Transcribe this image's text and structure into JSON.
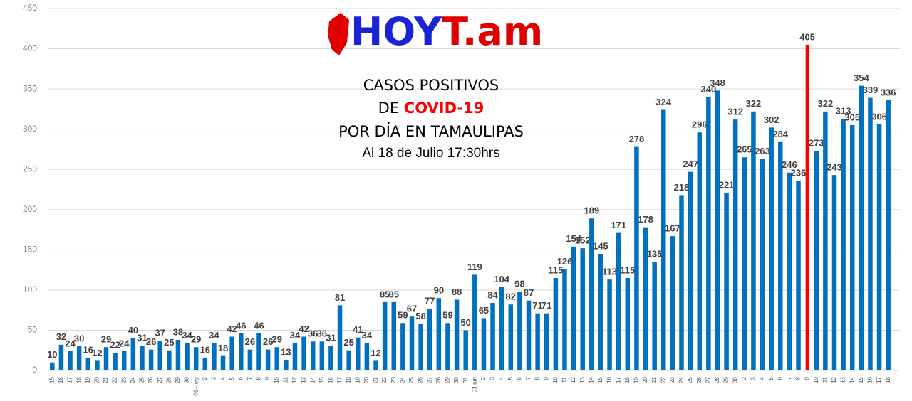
{
  "chart_data": {
    "type": "bar",
    "logo": {
      "part1": "HOY",
      "part2": "T.am"
    },
    "title_lines": [
      "CASOS POSITIVOS",
      "DE ",
      "COVID-19",
      "POR DÍA EN TAMAULIPAS"
    ],
    "subtitle": "Al 18 de Julio 17:30hrs",
    "categories": [
      "15",
      "16",
      "17",
      "18",
      "19",
      "20",
      "21",
      "22",
      "23",
      "24",
      "25",
      "26",
      "27",
      "28",
      "29",
      "30",
      "01-may",
      "2",
      "3",
      "4",
      "5",
      "6",
      "7",
      "8",
      "9",
      "10",
      "11",
      "12",
      "13",
      "14",
      "15",
      "16",
      "17",
      "18",
      "19",
      "20",
      "21",
      "22",
      "23",
      "24",
      "25",
      "26",
      "27",
      "28",
      "29",
      "30",
      "31",
      "01-jun",
      "2",
      "3",
      "4",
      "5",
      "6",
      "7",
      "8",
      "9",
      "10",
      "11",
      "12",
      "13",
      "14",
      "15",
      "16",
      "17",
      "18",
      "19",
      "20",
      "21",
      "22",
      "23",
      "24",
      "25",
      "26",
      "27",
      "28",
      "29",
      "30",
      "2",
      "3",
      "4",
      "5",
      "6",
      "7",
      "8",
      "9",
      "10",
      "11",
      "12",
      "13",
      "14",
      "15",
      "16",
      "17",
      "18"
    ],
    "values": [
      10,
      32,
      24,
      30,
      16,
      12,
      29,
      22,
      24,
      40,
      31,
      26,
      37,
      25,
      38,
      34,
      29,
      16,
      34,
      18,
      42,
      46,
      26,
      46,
      26,
      29,
      13,
      34,
      42,
      36,
      36,
      31,
      81,
      25,
      41,
      34,
      12,
      85,
      85,
      59,
      67,
      58,
      77,
      90,
      59,
      88,
      50,
      119,
      65,
      84,
      104,
      82,
      98,
      87,
      71,
      71,
      115,
      126,
      154,
      152,
      189,
      145,
      113,
      171,
      115,
      278,
      178,
      135,
      324,
      167,
      218,
      247,
      296,
      340,
      348,
      221,
      312,
      265,
      322,
      263,
      302,
      284,
      246,
      236,
      405,
      273,
      322,
      243,
      313,
      305,
      354,
      339,
      306,
      336
    ],
    "colors": [
      "#0070c0",
      "#0070c0",
      "#0070c0",
      "#0070c0",
      "#0070c0",
      "#0070c0",
      "#0070c0",
      "#0070c0",
      "#0070c0",
      "#0070c0",
      "#0070c0",
      "#0070c0",
      "#0070c0",
      "#0070c0",
      "#0070c0",
      "#0070c0",
      "#0070c0",
      "#0070c0",
      "#0070c0",
      "#0070c0",
      "#0070c0",
      "#0070c0",
      "#0070c0",
      "#0070c0",
      "#0070c0",
      "#0070c0",
      "#0070c0",
      "#0070c0",
      "#0070c0",
      "#0070c0",
      "#0070c0",
      "#0070c0",
      "#0070c0",
      "#0070c0",
      "#0070c0",
      "#0070c0",
      "#0070c0",
      "#0070c0",
      "#0070c0",
      "#0070c0",
      "#0070c0",
      "#0070c0",
      "#0070c0",
      "#0070c0",
      "#0070c0",
      "#0070c0",
      "#0070c0",
      "#0070c0",
      "#0070c0",
      "#0070c0",
      "#0070c0",
      "#0070c0",
      "#0070c0",
      "#0070c0",
      "#0070c0",
      "#0070c0",
      "#0070c0",
      "#0070c0",
      "#0070c0",
      "#0070c0",
      "#0070c0",
      "#0070c0",
      "#0070c0",
      "#0070c0",
      "#0070c0",
      "#0070c0",
      "#0070c0",
      "#0070c0",
      "#0070c0",
      "#0070c0",
      "#0070c0",
      "#0070c0",
      "#0070c0",
      "#0070c0",
      "#0070c0",
      "#0070c0",
      "#0070c0",
      "#0070c0",
      "#0070c0",
      "#0070c0",
      "#0070c0",
      "#0070c0",
      "#0070c0",
      "#0070c0",
      "#ff0000",
      "#0070c0",
      "#0070c0",
      "#0070c0",
      "#0070c0",
      "#0070c0",
      "#0070c0",
      "#0070c0",
      "#0070c0",
      "#0070c0"
    ],
    "ylim": [
      0,
      450
    ],
    "yticks": [
      0,
      50,
      100,
      150,
      200,
      250,
      300,
      350,
      400,
      450
    ],
    "grid": true
  }
}
